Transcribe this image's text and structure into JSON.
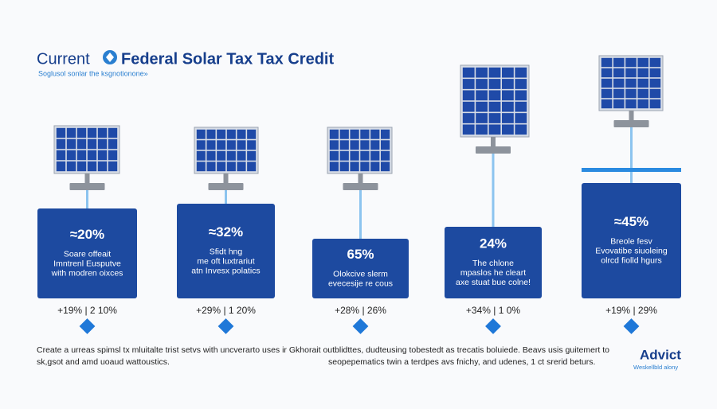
{
  "header": {
    "title_lead": "Current",
    "title_main": "Federal Solar Tax Tax Credit",
    "subtitle": "Soglusol sonlar the ksgnotionone»"
  },
  "cards": [
    {
      "percent": "≈20%",
      "lines": [
        "Soare offeait",
        "Imntrenl Eusputve",
        "with modren oixces"
      ],
      "stats": "+19% | 2 10%"
    },
    {
      "percent": "≈32%",
      "lines": [
        "Sfidt hng",
        "me oft luxtrariut",
        "atn Invesx polatics"
      ],
      "stats": "+29% | 1 20%"
    },
    {
      "percent": "65%",
      "lines": [
        "Olokcive slerm",
        "evecesije re cous"
      ],
      "stats": "+28% | 26%"
    },
    {
      "percent": "24%",
      "lines": [
        "The chlone",
        "mpaslos he cleart",
        "axe stuat bue colne!"
      ],
      "stats": "+34% | 1 0%"
    },
    {
      "percent": "≈45%",
      "lines": [
        "Breole fesv",
        "Evovatibe siuoleing",
        "olrcd fiolld hgurs"
      ],
      "stats": "+19% | 29%"
    }
  ],
  "footer": {
    "text_1": "Create a urreas spimsl tx mluitalte trist setvs with uncverarto uses ir Gkhorait outblidttes, dudteusing tobestedt as trecatis boluiede. Beavs usis guitemert to",
    "text_2": "sk,gsot and amd uoaud wattoustics.",
    "text_3": "seopepematics twin a terdpes avs fnichy, and udenes, 1 ct srerid beturs.",
    "logo": "Advict",
    "logo_sub": "Weskellbld alony"
  }
}
